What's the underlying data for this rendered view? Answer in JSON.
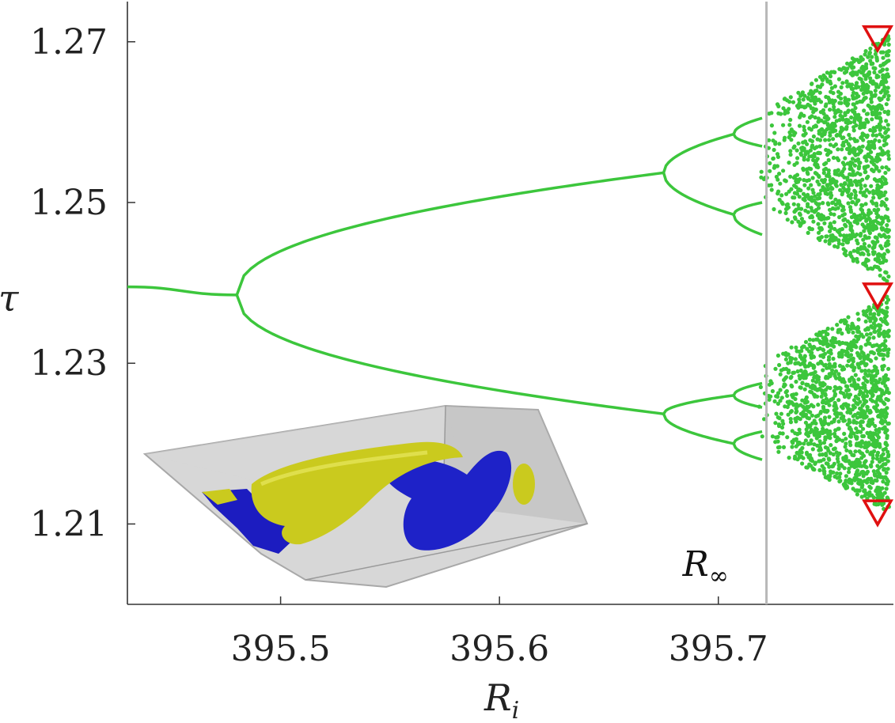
{
  "chart_data": {
    "type": "scatter",
    "title": "",
    "xlabel": "R",
    "xlabel_sub": "i",
    "ylabel": "τ",
    "xlim": [
      395.43,
      395.78
    ],
    "ylim": [
      1.2,
      1.275
    ],
    "x_ticks": [
      395.5,
      395.6,
      395.7
    ],
    "x_tick_labels": [
      "395.5",
      "395.6",
      "395.7"
    ],
    "y_ticks": [
      1.21,
      1.23,
      1.25,
      1.27
    ],
    "y_tick_labels": [
      "1.21",
      "1.23",
      "1.25",
      "1.27"
    ],
    "grid": false,
    "legend": "none",
    "colors": {
      "series": "#3cc63c",
      "marker": "#e01010",
      "vline": "#b8b8b8",
      "axis": "#333333"
    },
    "series": [
      {
        "segment": "period-1",
        "x": [
          395.43,
          395.48
        ],
        "y": [
          1.2395,
          1.2385
        ]
      },
      {
        "segment": "period-2 upper",
        "x": [
          395.48,
          395.5,
          395.55,
          395.6,
          395.65,
          395.675
        ],
        "y": [
          1.2385,
          1.2435,
          1.2482,
          1.251,
          1.253,
          1.2537
        ]
      },
      {
        "segment": "period-2 lower",
        "x": [
          395.48,
          395.5,
          395.55,
          395.6,
          395.65,
          395.675
        ],
        "y": [
          1.2385,
          1.2345,
          1.2298,
          1.2268,
          1.2245,
          1.2237
        ]
      },
      {
        "segment": "period-4 branches",
        "bifurcation_x": 395.675,
        "split_to": [
          1.2585,
          1.2485,
          1.226,
          1.22
        ]
      },
      {
        "segment": "period-8 onset",
        "bifurcation_x": 395.707,
        "chaotic_from_x": 395.72
      },
      {
        "segment": "chaotic bands",
        "x_range": [
          395.718,
          395.778
        ],
        "y_bands": [
          [
            1.2115,
            1.2385
          ],
          [
            1.24,
            1.271
          ]
        ]
      }
    ],
    "vertical_lines": [
      {
        "x": 395.722,
        "label": "R",
        "label_sub": "∞"
      }
    ],
    "markers": [
      {
        "shape": "triangle-down",
        "x": 395.778,
        "y": 1.2705
      },
      {
        "shape": "triangle-down",
        "x": 395.778,
        "y": 1.2385
      },
      {
        "shape": "triangle-down",
        "x": 395.778,
        "y": 1.2115
      }
    ],
    "inset": {
      "kind": "3d-isosurface-rendering",
      "colors": [
        "#c8c820",
        "#1c1cc8",
        "#b4b4b4"
      ]
    }
  }
}
